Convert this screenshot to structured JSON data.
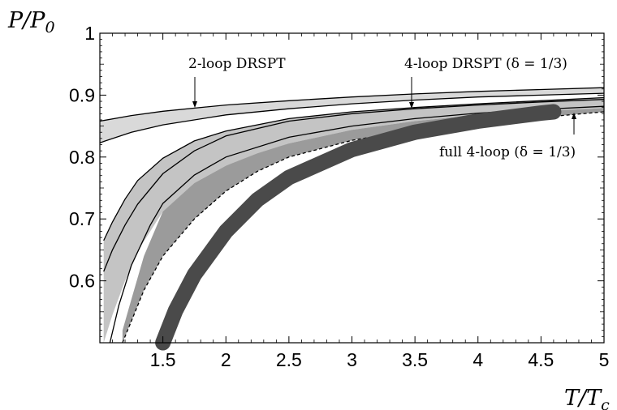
{
  "chart_data": {
    "type": "area",
    "title": "",
    "ylabel": "P/P0",
    "xlabel": "T/Tc",
    "xlim": [
      1.0,
      5.0
    ],
    "ylim": [
      0.5,
      1.0
    ],
    "grid": false,
    "x_ticks": [
      "1.5",
      "2",
      "2.5",
      "3",
      "3.5",
      "4",
      "4.5",
      "5"
    ],
    "x_tick_values": [
      1.5,
      2,
      2.5,
      3,
      3.5,
      4,
      4.5,
      5
    ],
    "y_ticks": [
      "0.6",
      "0.7",
      "0.8",
      "0.9",
      "1"
    ],
    "y_tick_values": [
      0.6,
      0.7,
      0.8,
      0.9,
      1.0
    ],
    "annotations": [
      {
        "text": "2-loop DRSPT"
      },
      {
        "text": "4-loop DRSPT (δ = 1/3)"
      },
      {
        "text": "full 4-loop (δ = 1/3)"
      }
    ],
    "bands": [
      {
        "fill": "#d9d9d9",
        "x": [
          1.0,
          1.25,
          1.5,
          2,
          2.5,
          3,
          3.5,
          4,
          4.5,
          5
        ],
        "upper": [
          0.858,
          0.867,
          0.874,
          0.884,
          0.891,
          0.897,
          0.902,
          0.906,
          0.909,
          0.912
        ],
        "lower": [
          0.823,
          0.84,
          0.852,
          0.868,
          0.878,
          0.886,
          0.892,
          0.897,
          0.9,
          0.903
        ]
      },
      {
        "fill": "#c4c4c4",
        "x": [
          1.03,
          1.1,
          1.2,
          1.3,
          1.5,
          1.75,
          2,
          2.5,
          3,
          3.5,
          4,
          4.5,
          5
        ],
        "upper": [
          0.665,
          0.695,
          0.732,
          0.762,
          0.798,
          0.826,
          0.842,
          0.862,
          0.873,
          0.88,
          0.886,
          0.891,
          0.896
        ],
        "lower": [
          0.5,
          0.545,
          0.6,
          0.648,
          0.712,
          0.758,
          0.786,
          0.822,
          0.844,
          0.858,
          0.868,
          0.874,
          0.879
        ]
      },
      {
        "fill": "#9b9b9b",
        "x": [
          1.18,
          1.25,
          1.35,
          1.5,
          1.75,
          2,
          2.25,
          2.5,
          3,
          3.5,
          4,
          4.5,
          5
        ],
        "upper": [
          0.52,
          0.57,
          0.64,
          0.712,
          0.758,
          0.786,
          0.806,
          0.822,
          0.844,
          0.858,
          0.868,
          0.874,
          0.879
        ],
        "lower": [
          0.5,
          0.535,
          0.585,
          0.64,
          0.7,
          0.745,
          0.777,
          0.8,
          0.827,
          0.844,
          0.855,
          0.864,
          0.873
        ]
      }
    ],
    "series": [
      {
        "x": [
          1.0,
          1.25,
          1.5,
          2,
          2.5,
          3,
          3.5,
          4,
          4.5,
          5
        ],
        "values": [
          0.858,
          0.867,
          0.874,
          0.884,
          0.891,
          0.897,
          0.902,
          0.906,
          0.909,
          0.912
        ],
        "style": "solid"
      },
      {
        "x": [
          1.0,
          1.25,
          1.5,
          2,
          2.5,
          3,
          3.5,
          4,
          4.5,
          5
        ],
        "values": [
          0.823,
          0.84,
          0.852,
          0.868,
          0.878,
          0.886,
          0.892,
          0.897,
          0.9,
          0.903
        ],
        "style": "solid"
      },
      {
        "x": [
          1.03,
          1.1,
          1.2,
          1.3,
          1.5,
          1.75,
          2,
          2.5,
          3,
          3.5,
          4,
          4.5,
          5
        ],
        "values": [
          0.665,
          0.695,
          0.732,
          0.762,
          0.798,
          0.826,
          0.842,
          0.862,
          0.873,
          0.88,
          0.886,
          0.891,
          0.896
        ],
        "style": "solid"
      },
      {
        "x": [
          1.03,
          1.1,
          1.2,
          1.3,
          1.5,
          1.75,
          2,
          2.5,
          3,
          3.5,
          4,
          4.5,
          5
        ],
        "values": [
          0.615,
          0.65,
          0.69,
          0.724,
          0.773,
          0.81,
          0.834,
          0.858,
          0.87,
          0.878,
          0.884,
          0.889,
          0.893
        ],
        "style": "solid"
      },
      {
        "x": [
          1.08,
          1.15,
          1.25,
          1.4,
          1.5,
          1.75,
          2,
          2.5,
          3,
          3.5,
          4,
          4.5,
          5
        ],
        "values": [
          0.5,
          0.56,
          0.625,
          0.69,
          0.725,
          0.771,
          0.8,
          0.832,
          0.85,
          0.862,
          0.871,
          0.877,
          0.882
        ],
        "style": "solid"
      },
      {
        "x": [
          1.18,
          1.25,
          1.35,
          1.5,
          1.75,
          2,
          2.25,
          2.5,
          3,
          3.5,
          4,
          4.5,
          5
        ],
        "values": [
          0.5,
          0.535,
          0.585,
          0.64,
          0.7,
          0.745,
          0.777,
          0.8,
          0.827,
          0.844,
          0.855,
          0.864,
          0.873
        ],
        "style": "dashed"
      },
      {
        "x": [
          1.5,
          1.6,
          1.75,
          2,
          2.25,
          2.5,
          3,
          3.5,
          4,
          4.5,
          4.6
        ],
        "values": [
          0.5,
          0.552,
          0.61,
          0.68,
          0.731,
          0.767,
          0.812,
          0.84,
          0.858,
          0.871,
          0.873
        ],
        "style": "thick",
        "color": "#4a4a4a"
      }
    ]
  }
}
